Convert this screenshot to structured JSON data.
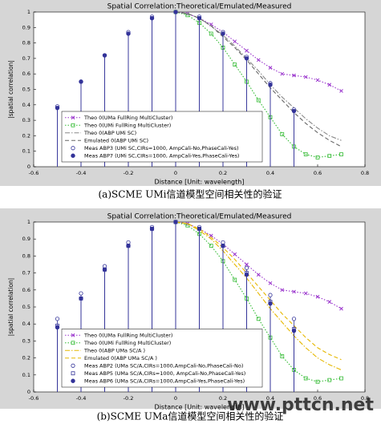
{
  "chart_data": [
    {
      "type": "line",
      "title": "Spatial Correlation:Theoretical/Emulated/Measured",
      "x_label": "Distance [Unit: wavelength]",
      "y_label": "|spatial correlation|",
      "caption": "(a)SCME UMi信道模型空间相关性的验证",
      "xlim": [
        -0.6,
        0.8
      ],
      "xticks": [
        -0.6,
        -0.4,
        -0.2,
        0,
        0.2,
        0.4,
        0.6,
        0.8
      ],
      "ylim": [
        0,
        1
      ],
      "yticks": [
        0,
        0.1,
        0.2,
        0.3,
        0.4,
        0.5,
        0.6,
        0.7,
        0.8,
        0.9,
        1
      ],
      "grid": false,
      "legend": "lower left",
      "series": [
        {
          "name": "Theo 0(UMa FullRing MultiCluster)",
          "color": "#9933cc",
          "style": "line",
          "dash": "dotted",
          "marker": "x",
          "x": [
            0,
            0.05,
            0.1,
            0.15,
            0.2,
            0.25,
            0.3,
            0.35,
            0.4,
            0.45,
            0.5,
            0.55,
            0.6,
            0.65,
            0.7
          ],
          "values": [
            1,
            0.99,
            0.96,
            0.92,
            0.87,
            0.81,
            0.75,
            0.69,
            0.64,
            0.6,
            0.59,
            0.58,
            0.56,
            0.53,
            0.49
          ]
        },
        {
          "name": "Theo 0(UMi FullRing MultiCluster)",
          "color": "#33bb33",
          "style": "line",
          "dash": "dotted",
          "marker": "square",
          "x": [
            0,
            0.05,
            0.1,
            0.15,
            0.2,
            0.25,
            0.3,
            0.35,
            0.4,
            0.45,
            0.5,
            0.55,
            0.6,
            0.65,
            0.7
          ],
          "values": [
            1,
            0.98,
            0.93,
            0.86,
            0.77,
            0.66,
            0.55,
            0.43,
            0.32,
            0.21,
            0.13,
            0.08,
            0.06,
            0.07,
            0.08
          ]
        },
        {
          "name": "Theo 0(ABP UMi SC)",
          "color": "#888888",
          "style": "line",
          "dash": "dashdot",
          "x": [
            0,
            0.05,
            0.1,
            0.15,
            0.2,
            0.25,
            0.3,
            0.35,
            0.4,
            0.45,
            0.5,
            0.55,
            0.6,
            0.65,
            0.7
          ],
          "values": [
            1,
            0.99,
            0.96,
            0.91,
            0.85,
            0.78,
            0.7,
            0.62,
            0.53,
            0.45,
            0.38,
            0.31,
            0.25,
            0.2,
            0.17
          ]
        },
        {
          "name": "Emulated 0(ABP UMi SC)",
          "color": "#666666",
          "style": "line",
          "dash": "dashed",
          "x": [
            0,
            0.05,
            0.1,
            0.15,
            0.2,
            0.25,
            0.3,
            0.35,
            0.4,
            0.45,
            0.5,
            0.55,
            0.6,
            0.65,
            0.7
          ],
          "values": [
            1,
            0.99,
            0.96,
            0.91,
            0.84,
            0.77,
            0.69,
            0.6,
            0.51,
            0.43,
            0.35,
            0.28,
            0.22,
            0.17,
            0.13
          ]
        },
        {
          "name": "Meas ABP3 (UMi SC,CIRs=1000, AmpCali-No,PhaseCali-Yes)",
          "color": "#333399",
          "style": "stem",
          "marker": "circle",
          "x": [
            -0.5,
            -0.4,
            -0.3,
            -0.2,
            -0.1,
            0,
            0.1,
            0.2,
            0.3,
            0.4,
            0.5
          ],
          "values": [
            0.39,
            0.55,
            0.72,
            0.87,
            0.97,
            1,
            0.97,
            0.87,
            0.71,
            0.54,
            0.37
          ]
        },
        {
          "name": "Meas ABP7 (UMi SC,CIRs=1000, AmpCali-Yes,PhaseCali-Yes)",
          "color": "#333399",
          "style": "stem",
          "marker": "filled",
          "x": [
            -0.5,
            -0.4,
            -0.3,
            -0.2,
            -0.1,
            0,
            0.1,
            0.2,
            0.3,
            0.4,
            0.5
          ],
          "values": [
            0.38,
            0.55,
            0.72,
            0.86,
            0.96,
            1,
            0.96,
            0.86,
            0.7,
            0.53,
            0.36
          ]
        }
      ]
    },
    {
      "type": "line",
      "title": "Spatial Correlation:Theoretical/Emulated/Measured",
      "x_label": "Distance [Unit: wavelength]",
      "y_label": "|spatial correlation|",
      "caption": "(b)SCME UMa信道模型空间相关性的验证",
      "xlim": [
        -0.6,
        0.8
      ],
      "xticks": [
        -0.6,
        -0.4,
        -0.2,
        0,
        0.2,
        0.4,
        0.6,
        0.8
      ],
      "ylim": [
        0,
        1
      ],
      "yticks": [
        0,
        0.1,
        0.2,
        0.3,
        0.4,
        0.5,
        0.6,
        0.7,
        0.8,
        0.9,
        1
      ],
      "grid": false,
      "legend": "lower left",
      "series": [
        {
          "name": "Theo 0(UMa FullRing MultiCluster)",
          "color": "#9933cc",
          "style": "line",
          "dash": "dotted",
          "marker": "x",
          "x": [
            0,
            0.05,
            0.1,
            0.15,
            0.2,
            0.25,
            0.3,
            0.35,
            0.4,
            0.45,
            0.5,
            0.55,
            0.6,
            0.65,
            0.7
          ],
          "values": [
            1,
            0.99,
            0.96,
            0.92,
            0.87,
            0.81,
            0.75,
            0.69,
            0.64,
            0.6,
            0.59,
            0.58,
            0.56,
            0.53,
            0.49
          ]
        },
        {
          "name": "Theo 0(UMi FullRing MultiCluster)",
          "color": "#33bb33",
          "style": "line",
          "dash": "dotted",
          "marker": "square",
          "x": [
            0,
            0.05,
            0.1,
            0.15,
            0.2,
            0.25,
            0.3,
            0.35,
            0.4,
            0.45,
            0.5,
            0.55,
            0.6,
            0.65,
            0.7
          ],
          "values": [
            1,
            0.98,
            0.93,
            0.86,
            0.77,
            0.66,
            0.55,
            0.43,
            0.32,
            0.21,
            0.13,
            0.08,
            0.06,
            0.07,
            0.08
          ]
        },
        {
          "name": "Theo 0(ABP UMa SC/A )",
          "color": "#e6b800",
          "style": "line",
          "dash": "dashdot",
          "x": [
            0,
            0.05,
            0.1,
            0.15,
            0.2,
            0.25,
            0.3,
            0.35,
            0.4,
            0.45,
            0.5,
            0.55,
            0.6,
            0.65,
            0.7
          ],
          "values": [
            1,
            0.99,
            0.95,
            0.9,
            0.83,
            0.75,
            0.67,
            0.58,
            0.49,
            0.41,
            0.33,
            0.26,
            0.2,
            0.16,
            0.13
          ]
        },
        {
          "name": "Emulated 0(ABP UMa SC/A )",
          "color": "#e6b800",
          "style": "line",
          "dash": "dashed",
          "x": [
            0,
            0.05,
            0.1,
            0.15,
            0.2,
            0.25,
            0.3,
            0.35,
            0.4,
            0.45,
            0.5,
            0.55,
            0.6,
            0.65,
            0.7
          ],
          "values": [
            1,
            0.99,
            0.96,
            0.91,
            0.85,
            0.78,
            0.7,
            0.62,
            0.54,
            0.46,
            0.39,
            0.32,
            0.26,
            0.22,
            0.19
          ]
        },
        {
          "name": "Meas ABP2 (UMa SC/A,CIRs=1000,AmpCali-No,PhaseCali-No)",
          "color": "#333399",
          "style": "stem",
          "marker": "circle",
          "x": [
            -0.5,
            -0.4,
            -0.3,
            -0.2,
            -0.1,
            0,
            0.1,
            0.2,
            0.3,
            0.4,
            0.5
          ],
          "values": [
            0.43,
            0.58,
            0.74,
            0.88,
            0.97,
            1,
            0.97,
            0.88,
            0.73,
            0.57,
            0.43
          ]
        },
        {
          "name": "Meas ABP5 (UMa SC/A,CIRs=1000, AmpCali-No,PhaseCali-Yes)",
          "color": "#333399",
          "style": "stem",
          "marker": "square",
          "x": [
            -0.5,
            -0.4,
            -0.3,
            -0.2,
            -0.1,
            0,
            0.1,
            0.2,
            0.3,
            0.4,
            0.5
          ],
          "values": [
            0.39,
            0.55,
            0.72,
            0.86,
            0.96,
            1,
            0.96,
            0.86,
            0.7,
            0.53,
            0.37
          ]
        },
        {
          "name": "Meas ABP6 (UMa SC/A,CIRs=1000,AmpCali-Yes,PhaseCali-Yes)",
          "color": "#333399",
          "style": "stem",
          "marker": "filled",
          "x": [
            -0.5,
            -0.4,
            -0.3,
            -0.2,
            -0.1,
            0,
            0.1,
            0.2,
            0.3,
            0.4,
            0.5
          ],
          "values": [
            0.38,
            0.55,
            0.72,
            0.86,
            0.96,
            1,
            0.96,
            0.86,
            0.69,
            0.52,
            0.36
          ]
        }
      ]
    }
  ],
  "watermark": "www.pttcn.net"
}
